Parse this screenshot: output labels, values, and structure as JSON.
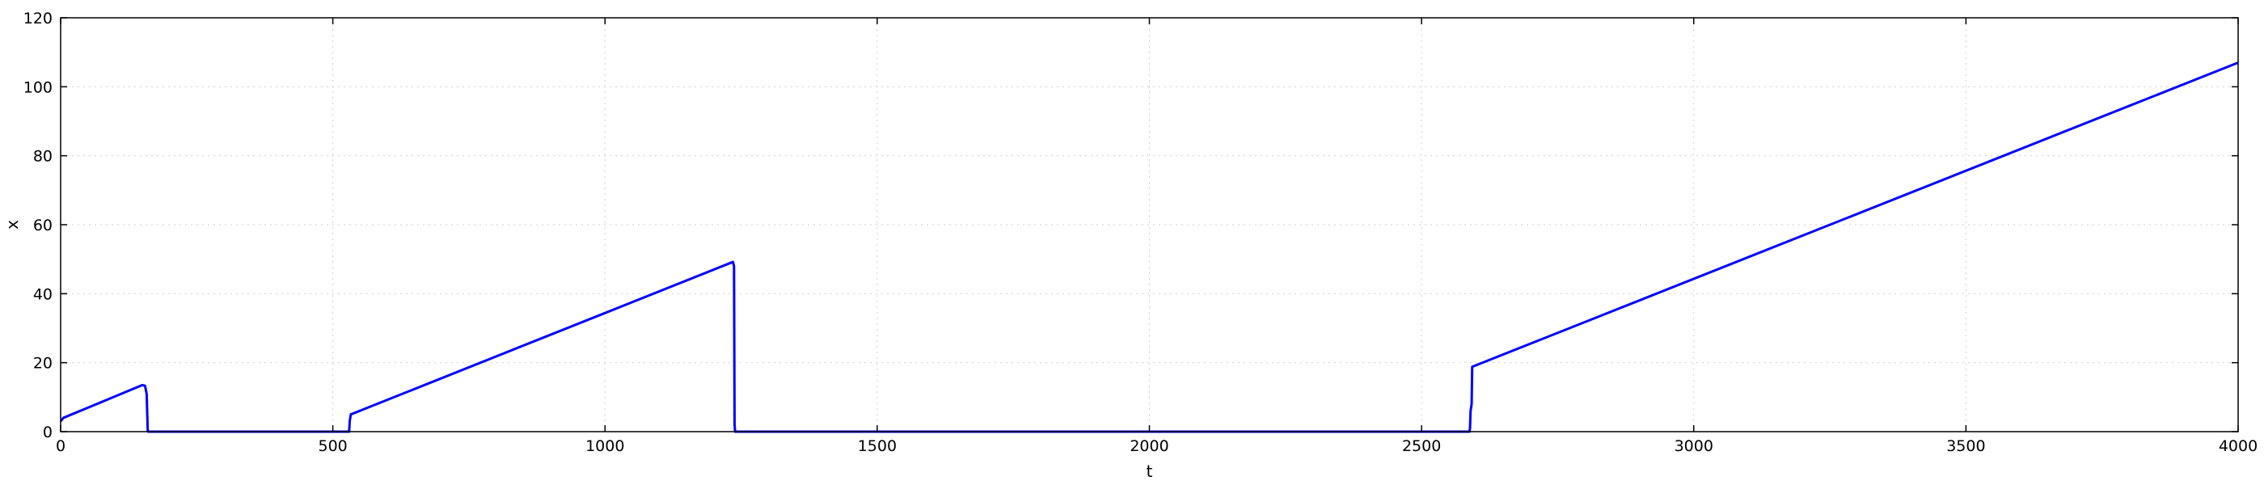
{
  "chart_data": {
    "type": "line",
    "title": "",
    "xlabel": "t",
    "ylabel": "x",
    "xlim": [
      0,
      4000
    ],
    "ylim": [
      0,
      120
    ],
    "xticks": [
      "0",
      "500",
      "1000",
      "1500",
      "2000",
      "2500",
      "3000",
      "3500",
      "4000"
    ],
    "yticks": [
      "0",
      "20",
      "40",
      "60",
      "80",
      "100",
      "120"
    ],
    "grid": true,
    "legend": "none",
    "series": [
      {
        "color": "#0000ff",
        "x": [
          0,
          5,
          150,
          155,
          158,
          160,
          161,
          530,
          531,
          533,
          1235,
          1237,
          1238,
          1239,
          2588,
          2589,
          2590,
          2592,
          2593,
          4000
        ],
        "y": [
          3,
          4,
          13.5,
          13.3,
          11,
          0.3,
          0,
          0,
          3,
          5,
          49.2,
          48,
          2,
          0,
          0,
          1,
          6,
          8,
          18.8,
          107
        ]
      }
    ]
  }
}
